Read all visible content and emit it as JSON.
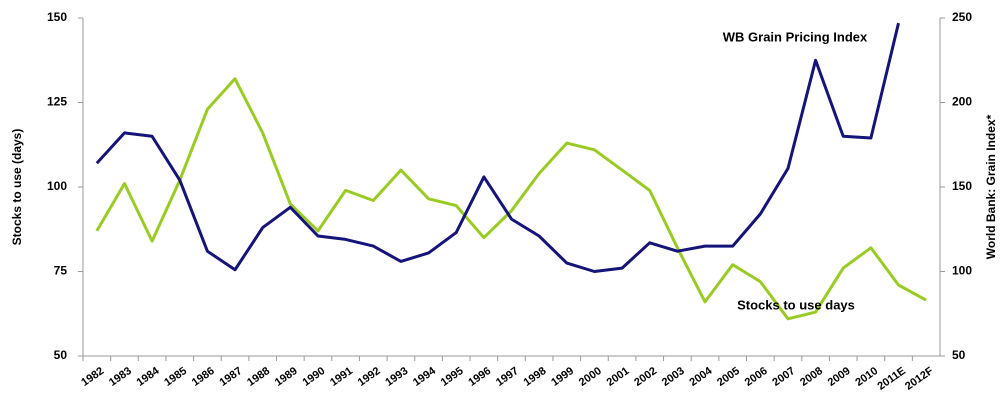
{
  "chart_data": {
    "type": "line",
    "categories": [
      "1982",
      "1983",
      "1984",
      "1985",
      "1986",
      "1987",
      "1988",
      "1989",
      "1990",
      "1991",
      "1992",
      "1993",
      "1994",
      "1995",
      "1996",
      "1997",
      "1998",
      "1999",
      "2000",
      "2001",
      "2002",
      "2003",
      "2004",
      "2005",
      "2006",
      "2007",
      "2008",
      "2009",
      "2010",
      "2011E",
      "2012F"
    ],
    "ylabel": "Stocks to use (days)",
    "y2label": "World Bank: Grain Index*",
    "ylim": [
      50,
      150
    ],
    "yticks": [
      50,
      75,
      100,
      125,
      150
    ],
    "y2lim": [
      50,
      250
    ],
    "y2ticks": [
      50,
      100,
      150,
      200,
      250
    ],
    "annotations": [
      "WB Grain Pricing  Index",
      "Stocks to use days"
    ],
    "series": [
      {
        "name": "Stocks to use days",
        "color": "#99cc22",
        "values": [
          87,
          101,
          84,
          102,
          123,
          132,
          116,
          95,
          87,
          99,
          96,
          105,
          96.5,
          94.5,
          85,
          93,
          104,
          113,
          111,
          105,
          99,
          82,
          66,
          77,
          72,
          61,
          63,
          76,
          82,
          71,
          66.5
        ]
      },
      {
        "name": "WB Grain Pricing Index",
        "color": "#14147a",
        "axis": "y2",
        "values": [
          164,
          182,
          180,
          154,
          112,
          101,
          126,
          138,
          121,
          119,
          115,
          106,
          111,
          123,
          156,
          131,
          121,
          105,
          100,
          102,
          117,
          112,
          115,
          115,
          134,
          161,
          225,
          180,
          179,
          247,
          null
        ]
      }
    ]
  }
}
